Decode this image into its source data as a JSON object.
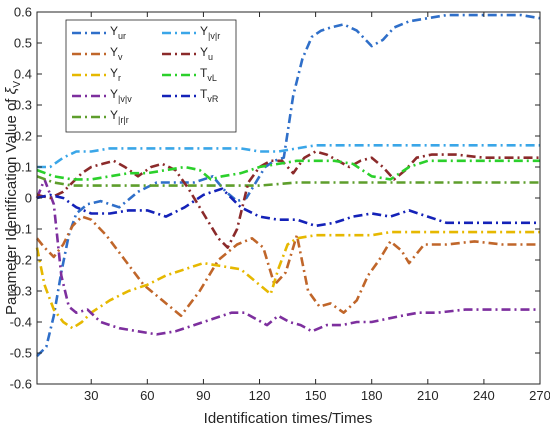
{
  "chart_data": {
    "type": "line",
    "xlabel": "Identification times/Times",
    "ylabel_main": "Parameter Identification Value of ",
    "ylabel_symbol": "ξ",
    "ylabel_sub": "V",
    "xlim": [
      1,
      270
    ],
    "ylim": [
      -0.6,
      0.6
    ],
    "xticks": [
      30,
      60,
      90,
      120,
      150,
      180,
      210,
      240,
      270
    ],
    "yticks": [
      -0.6,
      -0.5,
      -0.4,
      -0.3,
      -0.2,
      -0.1,
      0,
      0.1,
      0.2,
      0.3,
      0.4,
      0.5,
      0.6
    ],
    "grid": false,
    "legend_position": "top-left",
    "series": [
      {
        "name": "Y",
        "sub": "ur",
        "color": "#2f6fc9",
        "dash": "9,4,2,4",
        "x": [
          1,
          6,
          10,
          14,
          18,
          22,
          28,
          35,
          45,
          55,
          65,
          75,
          85,
          95,
          102,
          108,
          113,
          118,
          123,
          128,
          133,
          138,
          143,
          148,
          153,
          158,
          165,
          172,
          180,
          186,
          192,
          200,
          210,
          220,
          230,
          240,
          250,
          260,
          270
        ],
        "y": [
          -0.51,
          -0.48,
          -0.38,
          -0.24,
          -0.12,
          -0.05,
          -0.02,
          -0.01,
          -0.03,
          0.02,
          0.05,
          0.05,
          0.05,
          0.07,
          0.02,
          -0.01,
          0.0,
          0.05,
          0.1,
          0.12,
          0.13,
          0.33,
          0.45,
          0.52,
          0.54,
          0.55,
          0.56,
          0.54,
          0.49,
          0.51,
          0.55,
          0.57,
          0.58,
          0.59,
          0.59,
          0.59,
          0.59,
          0.59,
          0.58
        ]
      },
      {
        "name": "Y",
        "sub": "v",
        "color": "#c0662a",
        "dash": "9,4,2,4",
        "x": [
          1,
          5,
          10,
          15,
          20,
          25,
          30,
          38,
          48,
          58,
          68,
          78,
          88,
          98,
          108,
          116,
          122,
          128,
          134,
          140,
          146,
          152,
          158,
          165,
          172,
          178,
          184,
          190,
          196,
          200,
          208,
          220,
          235,
          250,
          270
        ],
        "y": [
          -0.13,
          -0.16,
          -0.19,
          -0.15,
          -0.09,
          -0.06,
          -0.07,
          -0.12,
          -0.2,
          -0.28,
          -0.33,
          -0.38,
          -0.3,
          -0.2,
          -0.15,
          -0.13,
          -0.16,
          -0.28,
          -0.24,
          -0.12,
          -0.3,
          -0.35,
          -0.34,
          -0.37,
          -0.33,
          -0.25,
          -0.2,
          -0.14,
          -0.17,
          -0.21,
          -0.15,
          -0.15,
          -0.14,
          -0.15,
          -0.15
        ]
      },
      {
        "name": "Y",
        "sub": "r",
        "color": "#e6b800",
        "dash": "9,4,2,4",
        "x": [
          1,
          5,
          10,
          15,
          20,
          25,
          30,
          40,
          50,
          60,
          70,
          80,
          90,
          100,
          110,
          120,
          126,
          130,
          135,
          140,
          150,
          160,
          170,
          180,
          190,
          200,
          210,
          220,
          235,
          250,
          270
        ],
        "y": [
          -0.16,
          -0.28,
          -0.36,
          -0.4,
          -0.42,
          -0.4,
          -0.37,
          -0.33,
          -0.3,
          -0.28,
          -0.25,
          -0.23,
          -0.21,
          -0.22,
          -0.23,
          -0.28,
          -0.31,
          -0.23,
          -0.15,
          -0.13,
          -0.12,
          -0.12,
          -0.12,
          -0.12,
          -0.11,
          -0.11,
          -0.11,
          -0.11,
          -0.11,
          -0.11,
          -0.11
        ]
      },
      {
        "name": "Y",
        "sub": "|v|v",
        "color": "#7d2f9e",
        "dash": "9,4,2,4",
        "x": [
          1,
          5,
          10,
          14,
          18,
          22,
          28,
          35,
          45,
          55,
          65,
          75,
          85,
          95,
          105,
          112,
          118,
          124,
          130,
          136,
          142,
          148,
          156,
          164,
          172,
          180,
          188,
          196,
          205,
          215,
          230,
          250,
          270
        ],
        "y": [
          0.0,
          0.06,
          -0.02,
          -0.25,
          -0.35,
          -0.37,
          -0.36,
          -0.4,
          -0.42,
          -0.43,
          -0.44,
          -0.43,
          -0.41,
          -0.39,
          -0.37,
          -0.37,
          -0.39,
          -0.41,
          -0.38,
          -0.4,
          -0.41,
          -0.43,
          -0.41,
          -0.41,
          -0.4,
          -0.4,
          -0.39,
          -0.38,
          -0.37,
          -0.37,
          -0.36,
          -0.36,
          -0.36
        ]
      },
      {
        "name": "Y",
        "sub": "|r|r",
        "color": "#5e9e2c",
        "dash": "9,4,2,4",
        "x": [
          1,
          10,
          20,
          30,
          40,
          60,
          80,
          100,
          120,
          140,
          160,
          180,
          200,
          220,
          240,
          270
        ],
        "y": [
          0.07,
          0.05,
          0.04,
          0.04,
          0.04,
          0.04,
          0.04,
          0.04,
          0.04,
          0.05,
          0.05,
          0.05,
          0.05,
          0.05,
          0.05,
          0.05
        ]
      },
      {
        "name": "Y",
        "sub": "|v|r",
        "color": "#3aa6e8",
        "dash": "9,4,2,4",
        "x": [
          1,
          8,
          15,
          22,
          30,
          40,
          50,
          60,
          70,
          80,
          90,
          100,
          110,
          120,
          130,
          140,
          150,
          160,
          175,
          190,
          210,
          230,
          250,
          270
        ],
        "y": [
          0.1,
          0.1,
          0.13,
          0.15,
          0.15,
          0.16,
          0.16,
          0.16,
          0.16,
          0.16,
          0.16,
          0.16,
          0.16,
          0.15,
          0.15,
          0.16,
          0.17,
          0.17,
          0.17,
          0.17,
          0.17,
          0.17,
          0.17,
          0.17
        ]
      },
      {
        "name": "Y",
        "sub": "u",
        "color": "#8b2a2a",
        "dash": "9,4,2,4",
        "x": [
          1,
          8,
          15,
          20,
          25,
          30,
          36,
          42,
          48,
          55,
          62,
          68,
          75,
          82,
          90,
          98,
          103,
          108,
          114,
          120,
          126,
          132,
          138,
          144,
          150,
          156,
          162,
          168,
          174,
          180,
          186,
          192,
          198,
          204,
          212,
          225,
          240,
          255,
          270
        ],
        "y": [
          0.01,
          0.0,
          0.02,
          0.05,
          0.08,
          0.1,
          0.11,
          0.12,
          0.1,
          0.07,
          0.1,
          0.11,
          0.09,
          0.03,
          -0.05,
          -0.13,
          -0.16,
          -0.1,
          0.05,
          0.1,
          0.12,
          0.12,
          0.08,
          0.13,
          0.15,
          0.14,
          0.12,
          0.1,
          0.12,
          0.13,
          0.1,
          0.06,
          0.09,
          0.13,
          0.14,
          0.14,
          0.13,
          0.13,
          0.13
        ]
      },
      {
        "name": "T",
        "sub": "vL",
        "color": "#2bd02b",
        "dash": "9,4,2,4",
        "x": [
          1,
          10,
          20,
          30,
          40,
          50,
          60,
          70,
          80,
          88,
          94,
          100,
          110,
          120,
          130,
          140,
          150,
          160,
          170,
          180,
          190,
          200,
          210,
          225,
          240,
          255,
          270
        ],
        "y": [
          0.09,
          0.07,
          0.06,
          0.06,
          0.07,
          0.08,
          0.08,
          0.09,
          0.1,
          0.09,
          0.06,
          0.07,
          0.08,
          0.1,
          0.11,
          0.12,
          0.12,
          0.12,
          0.11,
          0.07,
          0.06,
          0.1,
          0.12,
          0.12,
          0.12,
          0.12,
          0.12
        ]
      },
      {
        "name": "T",
        "sub": "vR",
        "color": "#1422b8",
        "dash": "9,4,2,4",
        "x": [
          1,
          8,
          15,
          22,
          30,
          40,
          50,
          60,
          70,
          80,
          90,
          100,
          110,
          120,
          130,
          140,
          150,
          160,
          170,
          180,
          190,
          200,
          210,
          220,
          240,
          255,
          270
        ],
        "y": [
          0.0,
          0.01,
          0.0,
          -0.03,
          -0.05,
          -0.05,
          -0.04,
          -0.04,
          -0.06,
          -0.03,
          0.01,
          0.03,
          -0.03,
          -0.06,
          -0.07,
          -0.07,
          -0.09,
          -0.08,
          -0.06,
          -0.05,
          -0.06,
          -0.04,
          -0.06,
          -0.08,
          -0.08,
          -0.08,
          -0.08
        ]
      }
    ]
  }
}
